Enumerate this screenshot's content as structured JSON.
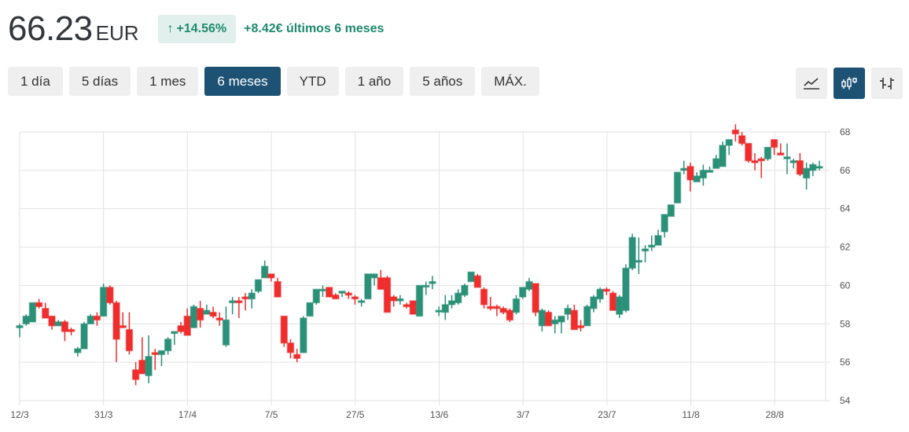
{
  "header": {
    "price": "66.23",
    "currency": "EUR",
    "change_arrow": "↑",
    "change_pct": "+14.56%",
    "change_abs": "+8.42€ últimos 6 meses"
  },
  "ranges": [
    {
      "label": "1 día",
      "active": false
    },
    {
      "label": "5 días",
      "active": false
    },
    {
      "label": "1 mes",
      "active": false
    },
    {
      "label": "6 meses",
      "active": true
    },
    {
      "label": "YTD",
      "active": false
    },
    {
      "label": "1 año",
      "active": false
    },
    {
      "label": "5 años",
      "active": false
    },
    {
      "label": "MÁX.",
      "active": false
    }
  ],
  "chart_types": [
    {
      "icon": "line-chart-icon",
      "active": false
    },
    {
      "icon": "candlestick-icon",
      "active": true
    },
    {
      "icon": "ohlc-bars-icon",
      "active": false
    }
  ],
  "colors": {
    "up": "#2a9078",
    "down": "#ef2d2d",
    "accent": "#1d5275",
    "positive_text": "#1f8a6d",
    "badge_bg": "#e1f0ec",
    "grid": "#e2e2e2"
  },
  "chart_data": {
    "type": "candlestick",
    "title": "",
    "xlabel": "",
    "ylabel": "",
    "ylim": [
      54,
      68
    ],
    "y_ticks": [
      54,
      56,
      58,
      60,
      62,
      64,
      66,
      68
    ],
    "x_ticks": [
      "12/3",
      "31/3",
      "17/4",
      "7/5",
      "27/5",
      "13/6",
      "3/7",
      "23/7",
      "11/8",
      "28/8"
    ],
    "grid": true,
    "y_axis_position": "right",
    "candles": [
      [
        57.8,
        58.0,
        57.3,
        57.9
      ],
      [
        58.0,
        58.5,
        57.9,
        58.4
      ],
      [
        58.1,
        59.1,
        58.1,
        59.1
      ],
      [
        59.1,
        59.3,
        58.8,
        58.9
      ],
      [
        58.8,
        59.1,
        58.3,
        58.3
      ],
      [
        58.4,
        58.4,
        57.7,
        57.9
      ],
      [
        57.9,
        58.2,
        57.9,
        58.1
      ],
      [
        58.1,
        58.2,
        57.1,
        57.6
      ],
      [
        57.7,
        57.8,
        57.4,
        57.6
      ],
      [
        56.5,
        56.8,
        56.3,
        56.7
      ],
      [
        56.7,
        58.1,
        56.7,
        58.0
      ],
      [
        58.0,
        58.5,
        58.0,
        58.4
      ],
      [
        58.4,
        58.6,
        57.9,
        58.2
      ],
      [
        58.4,
        60.1,
        58.4,
        59.9
      ],
      [
        59.9,
        60.0,
        59.0,
        59.1
      ],
      [
        59.1,
        59.2,
        56.0,
        57.2
      ],
      [
        57.9,
        58.6,
        57.8,
        57.8
      ],
      [
        57.7,
        58.6,
        56.4,
        56.6
      ],
      [
        55.6,
        56.0,
        54.8,
        55.1
      ],
      [
        56.1,
        57.3,
        55.4,
        55.4
      ],
      [
        55.3,
        57.4,
        54.9,
        56.3
      ],
      [
        56.5,
        56.7,
        55.6,
        56.4
      ],
      [
        56.4,
        56.6,
        55.8,
        56.6
      ],
      [
        56.6,
        57.3,
        56.4,
        57.2
      ],
      [
        57.5,
        57.5,
        56.9,
        57.6
      ],
      [
        57.9,
        58.1,
        57.5,
        57.6
      ],
      [
        58.4,
        58.8,
        57.4,
        57.4
      ],
      [
        57.8,
        59.0,
        57.8,
        58.9
      ],
      [
        58.8,
        59.2,
        57.8,
        58.2
      ],
      [
        58.5,
        59.0,
        58.5,
        58.7
      ],
      [
        58.6,
        58.9,
        58.3,
        58.4
      ],
      [
        58.3,
        58.6,
        57.9,
        58.2
      ],
      [
        56.9,
        58.9,
        56.8,
        58.2
      ],
      [
        59.1,
        59.4,
        58.5,
        59.2
      ],
      [
        59.2,
        59.4,
        58.3,
        59.1
      ],
      [
        59.4,
        59.6,
        58.7,
        59.3
      ],
      [
        59.3,
        59.8,
        58.8,
        59.6
      ],
      [
        59.7,
        60.2,
        59.6,
        60.3
      ],
      [
        60.4,
        61.3,
        60.4,
        61.0
      ],
      [
        60.6,
        60.6,
        60.2,
        60.4
      ],
      [
        60.2,
        60.4,
        59.4,
        59.4
      ],
      [
        58.4,
        58.4,
        56.8,
        57.0
      ],
      [
        57.0,
        57.2,
        56.2,
        56.5
      ],
      [
        56.4,
        56.7,
        56.0,
        56.2
      ],
      [
        56.5,
        58.4,
        56.5,
        58.3
      ],
      [
        58.4,
        59.1,
        58.4,
        59.1
      ],
      [
        59.1,
        59.7,
        59.0,
        59.8
      ],
      [
        59.8,
        60.0,
        59.4,
        59.8
      ],
      [
        59.9,
        59.9,
        59.4,
        59.4
      ],
      [
        59.5,
        59.6,
        59.3,
        59.3
      ],
      [
        59.6,
        59.7,
        59.4,
        59.7
      ],
      [
        59.6,
        59.7,
        59.3,
        59.5
      ],
      [
        59.4,
        59.5,
        59.0,
        59.3
      ],
      [
        59.2,
        59.3,
        58.9,
        59.2
      ],
      [
        59.3,
        60.6,
        59.3,
        60.6
      ],
      [
        60.4,
        60.6,
        60.0,
        60.6
      ],
      [
        60.4,
        60.8,
        59.8,
        59.8
      ],
      [
        60.4,
        60.5,
        58.6,
        58.6
      ],
      [
        59.4,
        59.5,
        58.9,
        59.2
      ],
      [
        59.2,
        59.5,
        59.0,
        59.3
      ],
      [
        59.0,
        59.1,
        58.8,
        58.9
      ],
      [
        59.2,
        59.2,
        58.6,
        58.5
      ],
      [
        58.4,
        60.0,
        58.4,
        60.0
      ],
      [
        60.0,
        60.2,
        59.5,
        60.0
      ],
      [
        60.1,
        60.5,
        59.8,
        60.2
      ],
      [
        58.7,
        58.9,
        58.4,
        58.7
      ],
      [
        58.6,
        59.5,
        58.2,
        59.0
      ],
      [
        59.0,
        59.5,
        58.8,
        59.2
      ],
      [
        59.1,
        59.8,
        59.0,
        59.6
      ],
      [
        59.5,
        60.1,
        59.4,
        60.0
      ],
      [
        60.2,
        60.7,
        60.2,
        60.7
      ],
      [
        60.5,
        60.6,
        59.9,
        59.9
      ],
      [
        59.8,
        59.9,
        58.8,
        59.0
      ],
      [
        58.9,
        59.4,
        58.7,
        58.8
      ],
      [
        58.9,
        59.0,
        58.4,
        58.8
      ],
      [
        58.8,
        58.9,
        58.5,
        58.6
      ],
      [
        58.7,
        58.8,
        58.1,
        58.2
      ],
      [
        58.6,
        59.5,
        58.5,
        59.3
      ],
      [
        59.4,
        59.9,
        59.3,
        59.9
      ],
      [
        59.8,
        60.4,
        59.7,
        60.2
      ],
      [
        60.1,
        60.1,
        58.4,
        58.6
      ],
      [
        57.9,
        58.8,
        57.6,
        58.7
      ],
      [
        58.6,
        58.7,
        58.0,
        57.9
      ],
      [
        58.0,
        58.4,
        57.5,
        58.2
      ],
      [
        58.1,
        58.3,
        57.5,
        58.4
      ],
      [
        58.5,
        59.0,
        58.2,
        58.8
      ],
      [
        58.7,
        59.0,
        58.1,
        57.7
      ],
      [
        57.9,
        58.2,
        57.6,
        57.8
      ],
      [
        57.9,
        59.0,
        57.9,
        58.9
      ],
      [
        58.8,
        59.5,
        58.6,
        59.4
      ],
      [
        59.3,
        59.9,
        59.1,
        59.8
      ],
      [
        59.8,
        59.9,
        59.5,
        59.7
      ],
      [
        59.6,
        59.7,
        58.8,
        58.7
      ],
      [
        58.5,
        59.5,
        58.3,
        59.4
      ],
      [
        58.7,
        61.1,
        58.6,
        60.9
      ],
      [
        60.9,
        62.7,
        60.8,
        62.5
      ],
      [
        61.3,
        62.5,
        60.6,
        61.3
      ],
      [
        61.8,
        62.1,
        61.2,
        61.9
      ],
      [
        62.0,
        62.6,
        61.8,
        62.1
      ],
      [
        62.1,
        62.9,
        62.2,
        62.6
      ],
      [
        62.8,
        63.6,
        62.5,
        63.7
      ],
      [
        63.6,
        64.2,
        63.6,
        64.2
      ],
      [
        64.3,
        65.0,
        64.4,
        65.9
      ],
      [
        66.0,
        66.5,
        65.8,
        66.1
      ],
      [
        66.2,
        66.4,
        64.9,
        65.5
      ],
      [
        65.4,
        65.9,
        65.4,
        65.7
      ],
      [
        65.6,
        66.3,
        65.2,
        66.0
      ],
      [
        65.9,
        66.2,
        65.9,
        66.0
      ],
      [
        66.1,
        66.8,
        66.1,
        66.6
      ],
      [
        66.2,
        67.5,
        66.2,
        67.3
      ],
      [
        67.3,
        67.6,
        66.8,
        67.6
      ],
      [
        68.1,
        68.4,
        67.5,
        67.9
      ],
      [
        67.8,
        68.0,
        67.3,
        67.4
      ],
      [
        67.4,
        67.2,
        66.4,
        66.5
      ],
      [
        66.5,
        66.9,
        66.0,
        66.4
      ],
      [
        66.6,
        66.7,
        65.6,
        66.5
      ],
      [
        66.6,
        67.2,
        66.5,
        67.2
      ],
      [
        67.6,
        67.6,
        66.8,
        67.2
      ],
      [
        66.9,
        67.4,
        66.8,
        66.8
      ],
      [
        66.6,
        67.4,
        65.8,
        66.7
      ],
      [
        66.4,
        66.6,
        66.1,
        66.5
      ],
      [
        66.5,
        66.9,
        65.7,
        65.8
      ],
      [
        65.6,
        66.4,
        65.0,
        66.1
      ],
      [
        66.0,
        66.4,
        65.7,
        66.3
      ],
      [
        66.2,
        66.5,
        66.0,
        66.2
      ]
    ]
  }
}
